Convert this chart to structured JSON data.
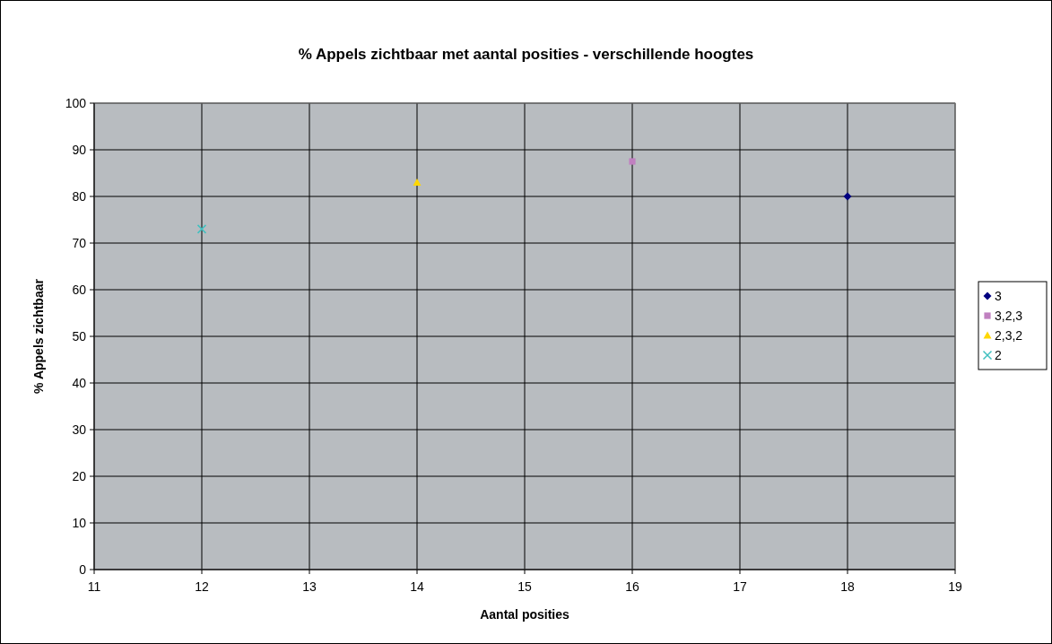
{
  "chart_data": {
    "type": "scatter",
    "title": "% Appels zichtbaar met aantal posities - verschillende hoogtes",
    "xlabel": "Aantal posities",
    "ylabel": "% Appels zichtbaar",
    "xlim": [
      11,
      19
    ],
    "xticks": [
      11,
      12,
      13,
      14,
      15,
      16,
      17,
      18,
      19
    ],
    "ylim": [
      0,
      100
    ],
    "yticks": [
      0,
      10,
      20,
      30,
      40,
      50,
      60,
      70,
      80,
      90,
      100
    ],
    "grid": true,
    "legend": "right",
    "series": [
      {
        "name": "3",
        "color": "#000080",
        "x": [
          18
        ],
        "values": [
          80
        ],
        "marker": "diamond"
      },
      {
        "name": "3,2,3",
        "color": "#c080c0",
        "x": [
          16
        ],
        "values": [
          87.5
        ],
        "marker": "square"
      },
      {
        "name": "2,3,2",
        "color": "#ffd700",
        "x": [
          14
        ],
        "values": [
          83
        ],
        "marker": "triangle"
      },
      {
        "name": "2",
        "color": "#40c0c0",
        "x": [
          12
        ],
        "values": [
          73
        ],
        "marker": "cross"
      }
    ]
  }
}
